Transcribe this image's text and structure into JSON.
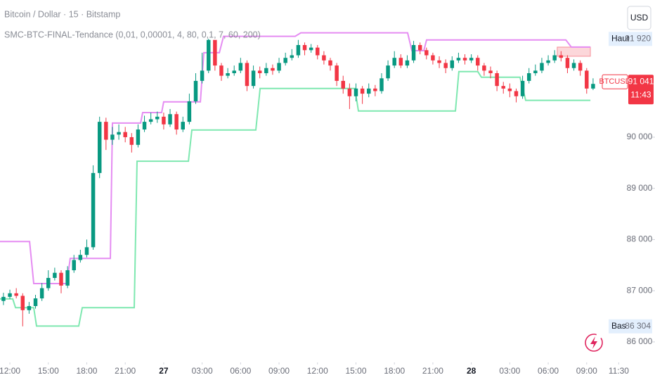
{
  "chart_data": {
    "type": "candlestick",
    "title": "Bitcoin / Dollar · 15 · Bitstamp",
    "subtitle": "SMC-BTC-FINAL-Tendance (0,01, 0,00001, 4, 80, 0,1, 7, 60, 200)",
    "currency": "USD",
    "up_color": "#089981",
    "down_color": "#f23645",
    "grid": false,
    "xlim": [
      -0.77,
      50.33
    ],
    "ylim": [
      85600,
      92680
    ],
    "xticks": [
      {
        "value": 0,
        "label": "12:00"
      },
      {
        "value": 3,
        "label": "15:00"
      },
      {
        "value": 6,
        "label": "18:00"
      },
      {
        "value": 9,
        "label": "21:00"
      },
      {
        "value": 12,
        "label": "27"
      },
      {
        "value": 15,
        "label": "03:00"
      },
      {
        "value": 18,
        "label": "06:00"
      },
      {
        "value": 21,
        "label": "09:00"
      },
      {
        "value": 24,
        "label": "12:00"
      },
      {
        "value": 27,
        "label": "15:00"
      },
      {
        "value": 30,
        "label": "18:00"
      },
      {
        "value": 33,
        "label": "21:00"
      },
      {
        "value": 36,
        "label": "28"
      },
      {
        "value": 39,
        "label": "03:00"
      },
      {
        "value": 42,
        "label": "06:00"
      },
      {
        "value": 45,
        "label": "09:00"
      },
      {
        "value": 47.5,
        "label": "11:30"
      }
    ],
    "yticks": [
      {
        "value": 86000,
        "label": "86 000"
      },
      {
        "value": 87000,
        "label": "87 000"
      },
      {
        "value": 88000,
        "label": "88 000"
      },
      {
        "value": 89000,
        "label": "89 000"
      },
      {
        "value": 90000,
        "label": "90 000"
      }
    ],
    "x": [
      -0.5,
      0,
      0.5,
      1,
      1.5,
      2,
      2.5,
      3,
      3.5,
      4,
      4.5,
      5,
      5.5,
      6,
      6.5,
      7,
      7.5,
      8,
      8.5,
      9,
      9.5,
      10,
      10.5,
      11,
      11.5,
      12,
      12.5,
      13,
      13.5,
      14,
      14.5,
      15,
      15.5,
      16,
      16.5,
      17,
      17.5,
      18,
      18.5,
      19,
      19.5,
      20,
      20.5,
      21,
      21.5,
      22,
      22.5,
      23,
      23.5,
      24,
      24.5,
      25,
      25.5,
      26,
      26.5,
      27,
      27.5,
      28,
      28.5,
      29,
      29.5,
      30,
      30.5,
      31,
      31.5,
      32,
      32.5,
      33,
      33.5,
      34,
      34.5,
      35,
      35.5,
      36,
      36.5,
      37,
      37.5,
      38,
      38.5,
      39,
      39.5,
      40,
      40.5,
      41,
      41.5,
      42,
      42.5,
      43,
      43.5,
      44,
      44.5,
      45,
      45.5
    ],
    "open": [
      86800,
      86880,
      86950,
      86900,
      86620,
      86700,
      86850,
      87050,
      87250,
      87350,
      87100,
      87400,
      87600,
      87700,
      87850,
      89300,
      90300,
      89950,
      90050,
      90100,
      90000,
      89850,
      90150,
      90300,
      90350,
      90400,
      90250,
      90450,
      90150,
      90300,
      90700,
      91100,
      91300,
      91900,
      91400,
      91200,
      91250,
      91300,
      91450,
      91000,
      91300,
      91250,
      91350,
      91300,
      91450,
      91550,
      91600,
      91800,
      91700,
      91750,
      91600,
      91500,
      91400,
      91100,
      90950,
      90800,
      90950,
      90850,
      90950,
      90900,
      91150,
      91400,
      91550,
      91400,
      91500,
      91800,
      91700,
      91600,
      91500,
      91450,
      91350,
      91500,
      91550,
      91500,
      91550,
      91400,
      91300,
      91250,
      91000,
      90950,
      90900,
      90800,
      91100,
      91250,
      91300,
      91450,
      91500,
      91600,
      91550,
      91350,
      91450,
      91300,
      90950
    ],
    "high": [
      86960,
      87020,
      87050,
      86950,
      86780,
      86920,
      87150,
      87400,
      87450,
      87400,
      87480,
      87700,
      87800,
      88000,
      89450,
      90400,
      90380,
      90200,
      90250,
      90200,
      90080,
      90250,
      90420,
      90480,
      90500,
      90480,
      90550,
      90500,
      90400,
      90850,
      91250,
      91650,
      91920,
      91880,
      91450,
      91350,
      91400,
      91550,
      91500,
      91400,
      91380,
      91450,
      91420,
      91550,
      91650,
      91720,
      91900,
      91850,
      91820,
      91800,
      91680,
      91550,
      91450,
      91200,
      91050,
      91050,
      91000,
      91050,
      91020,
      91250,
      91500,
      91680,
      91620,
      91600,
      91880,
      91850,
      91750,
      91650,
      91580,
      91520,
      91580,
      91650,
      91620,
      91620,
      91600,
      91450,
      91380,
      91300,
      91080,
      91050,
      90950,
      91200,
      91350,
      91420,
      91550,
      91600,
      91700,
      91680,
      91600,
      91520,
      91500,
      91350,
      91150
    ],
    "low": [
      86720,
      86840,
      86850,
      86304,
      86550,
      86650,
      86800,
      87000,
      87200,
      86950,
      87050,
      87350,
      87550,
      87650,
      87800,
      89200,
      89750,
      89850,
      89950,
      89900,
      89700,
      89800,
      90100,
      90250,
      90280,
      90150,
      90200,
      90050,
      90100,
      90250,
      90650,
      91050,
      91250,
      91300,
      91100,
      91150,
      91200,
      91250,
      90900,
      90950,
      91150,
      91200,
      91220,
      91250,
      91400,
      91500,
      91550,
      91600,
      91650,
      91520,
      91420,
      91300,
      91000,
      90850,
      90550,
      90700,
      90650,
      90780,
      90800,
      90850,
      91100,
      91350,
      91350,
      91350,
      91450,
      91620,
      91520,
      91420,
      91350,
      91250,
      91300,
      91450,
      91420,
      91450,
      91300,
      91200,
      91150,
      90900,
      90850,
      90780,
      90680,
      90750,
      91050,
      91200,
      91250,
      91400,
      91450,
      91480,
      91250,
      91300,
      91200,
      90850,
      90920
    ],
    "close": [
      86880,
      86950,
      86900,
      86620,
      86700,
      86850,
      87050,
      87250,
      87350,
      87100,
      87400,
      87600,
      87700,
      87850,
      89300,
      90300,
      89950,
      90050,
      90100,
      90000,
      89850,
      90150,
      90300,
      90350,
      90400,
      90250,
      90450,
      90150,
      90300,
      90700,
      91100,
      91300,
      91900,
      91400,
      91200,
      91250,
      91300,
      91450,
      91000,
      91300,
      91250,
      91350,
      91300,
      91450,
      91550,
      91600,
      91800,
      91700,
      91750,
      91600,
      91500,
      91400,
      91100,
      90950,
      90800,
      90950,
      90850,
      90950,
      90900,
      91150,
      91400,
      91550,
      91400,
      91500,
      91800,
      91700,
      91600,
      91500,
      91450,
      91350,
      91500,
      91550,
      91500,
      91550,
      91400,
      91300,
      91250,
      91000,
      90950,
      90900,
      90800,
      91100,
      91250,
      91300,
      91450,
      91500,
      91600,
      91550,
      91350,
      91450,
      91300,
      90950,
      91041
    ],
    "series": [
      {
        "color": "#e58cf2",
        "x": [
          -0.77,
          1.54,
          1.86,
          4.44,
          4.71,
          7.84,
          8.0,
          10.2,
          10.36,
          11.84,
          12.0,
          14.86,
          15.13,
          16.34,
          16.67,
          22.26,
          22.7,
          31.03,
          31.36,
          32.29,
          32.51,
          43.37,
          43.8,
          45.29
        ],
        "values": [
          87960,
          87960,
          87140,
          87140,
          87630,
          87630,
          90275,
          90275,
          90480,
          90480,
          90690,
          90690,
          91650,
          91650,
          91970,
          91970,
          92040,
          92040,
          91690,
          91690,
          91900,
          91900,
          91760,
          91760
        ]
      },
      {
        "color": "#7ee8b0",
        "x": [
          -0.77,
          0.22,
          0.44,
          1.86,
          2.08,
          5.37,
          5.65,
          9.7,
          9.92,
          13.93,
          14.2,
          19.19,
          19.52,
          26.92,
          27.19,
          34.76,
          35.03,
          36.51,
          36.79,
          39.8,
          40.24,
          45.29
        ],
        "values": [
          86840,
          86840,
          86670,
          86670,
          86310,
          86310,
          86670,
          86670,
          89530,
          89530,
          90140,
          90140,
          90950,
          90950,
          90510,
          90510,
          91280,
          91280,
          91170,
          91170,
          90720,
          90720
        ]
      }
    ],
    "zone": {
      "xlim": [
        42.7,
        45.29
      ],
      "ylim": [
        91580,
        91760
      ],
      "color": "#f23645"
    },
    "markers": [
      {
        "name": "Haut",
        "value": 91920,
        "label": "91 920"
      },
      {
        "name": "Bas",
        "value": 86304,
        "label": "86 304"
      }
    ],
    "last_price": {
      "name": "BTCUSD",
      "value": 91041,
      "label": "91 041",
      "countdown": "11:43"
    }
  }
}
